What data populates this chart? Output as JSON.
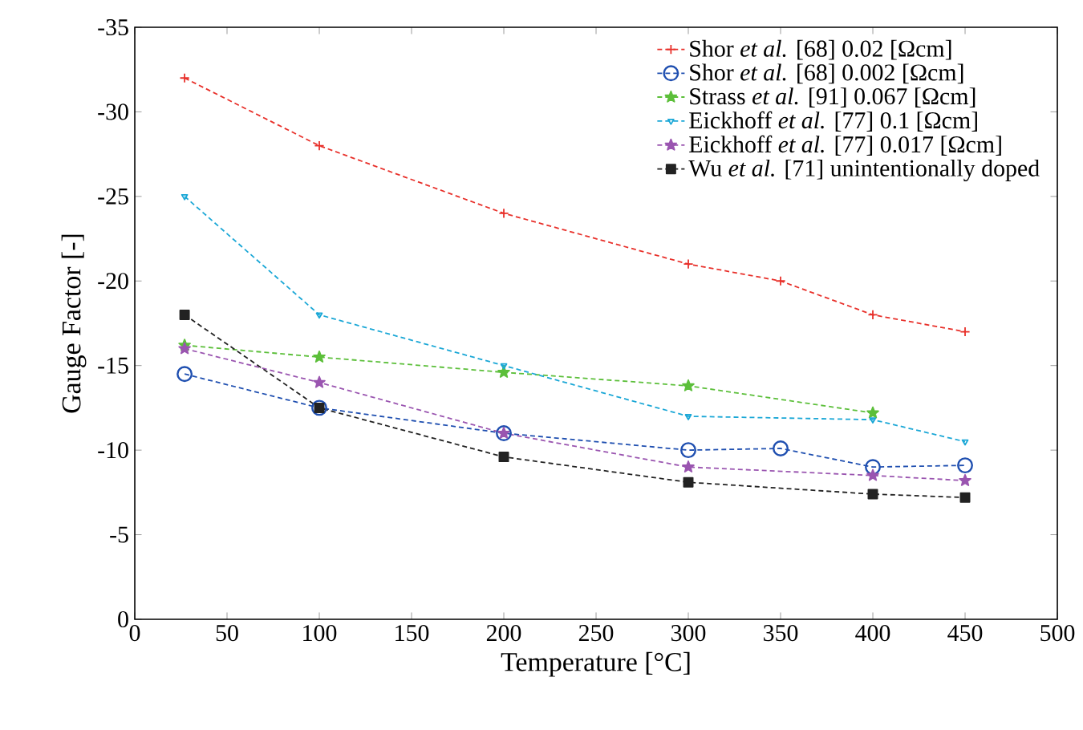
{
  "chart_data": {
    "type": "line",
    "xlabel": "Temperature [°C]",
    "ylabel": "Gauge Factor [-]",
    "xlim": [
      0,
      500
    ],
    "xticks": [
      0,
      50,
      100,
      150,
      200,
      250,
      300,
      350,
      400,
      450,
      500
    ],
    "ylim": [
      0,
      -35
    ],
    "yticks": [
      0,
      -5,
      -10,
      -15,
      -20,
      -25,
      -30,
      -35
    ],
    "legend": "top right",
    "line_style": "dashed",
    "grid": false,
    "series": [
      {
        "name": "Shor *et al.* [68] 0.02 [Ωcm]",
        "color": "#e8302a",
        "marker": "cross",
        "x": [
          27,
          100,
          200,
          300,
          350,
          400,
          450
        ],
        "values": [
          -32,
          -28,
          -24,
          -21,
          -20,
          -18,
          -17
        ]
      },
      {
        "name": "Shor *et al.* [68] 0.002 [Ωcm]",
        "color": "#1f4fb0",
        "marker": "circle",
        "x": [
          27,
          100,
          200,
          300,
          350,
          400,
          450
        ],
        "values": [
          -14.5,
          -12.5,
          -11,
          -10,
          -10.1,
          -9,
          -9.1
        ]
      },
      {
        "name": "Strass *et al.* [91] 0.067 [Ωcm]",
        "color": "#5cbf3a",
        "marker": "star",
        "x": [
          27,
          100,
          200,
          300,
          400
        ],
        "values": [
          -16.2,
          -15.5,
          -14.6,
          -13.8,
          -12.2
        ]
      },
      {
        "name": "Eickhoff *et al.* [77] 0.1 [Ωcm]",
        "color": "#1aa7d6",
        "marker": "triangle",
        "x": [
          27,
          100,
          200,
          300,
          400,
          450
        ],
        "values": [
          -25,
          -18,
          -15,
          -12,
          -11.8,
          -10.5
        ]
      },
      {
        "name": "Eickhoff *et al.* [77] 0.017 [Ωcm]",
        "color": "#9a55b0",
        "marker": "star",
        "x": [
          27,
          100,
          200,
          300,
          400,
          450
        ],
        "values": [
          -16,
          -14,
          -11,
          -9,
          -8.5,
          -8.2
        ]
      },
      {
        "name": "Wu *et al.* [71] unintentionally doped",
        "color": "#222222",
        "marker": "square",
        "x": [
          27,
          100,
          200,
          300,
          400,
          450
        ],
        "values": [
          -18,
          -12.5,
          -9.6,
          -8.1,
          -7.4,
          -7.2
        ]
      }
    ]
  }
}
